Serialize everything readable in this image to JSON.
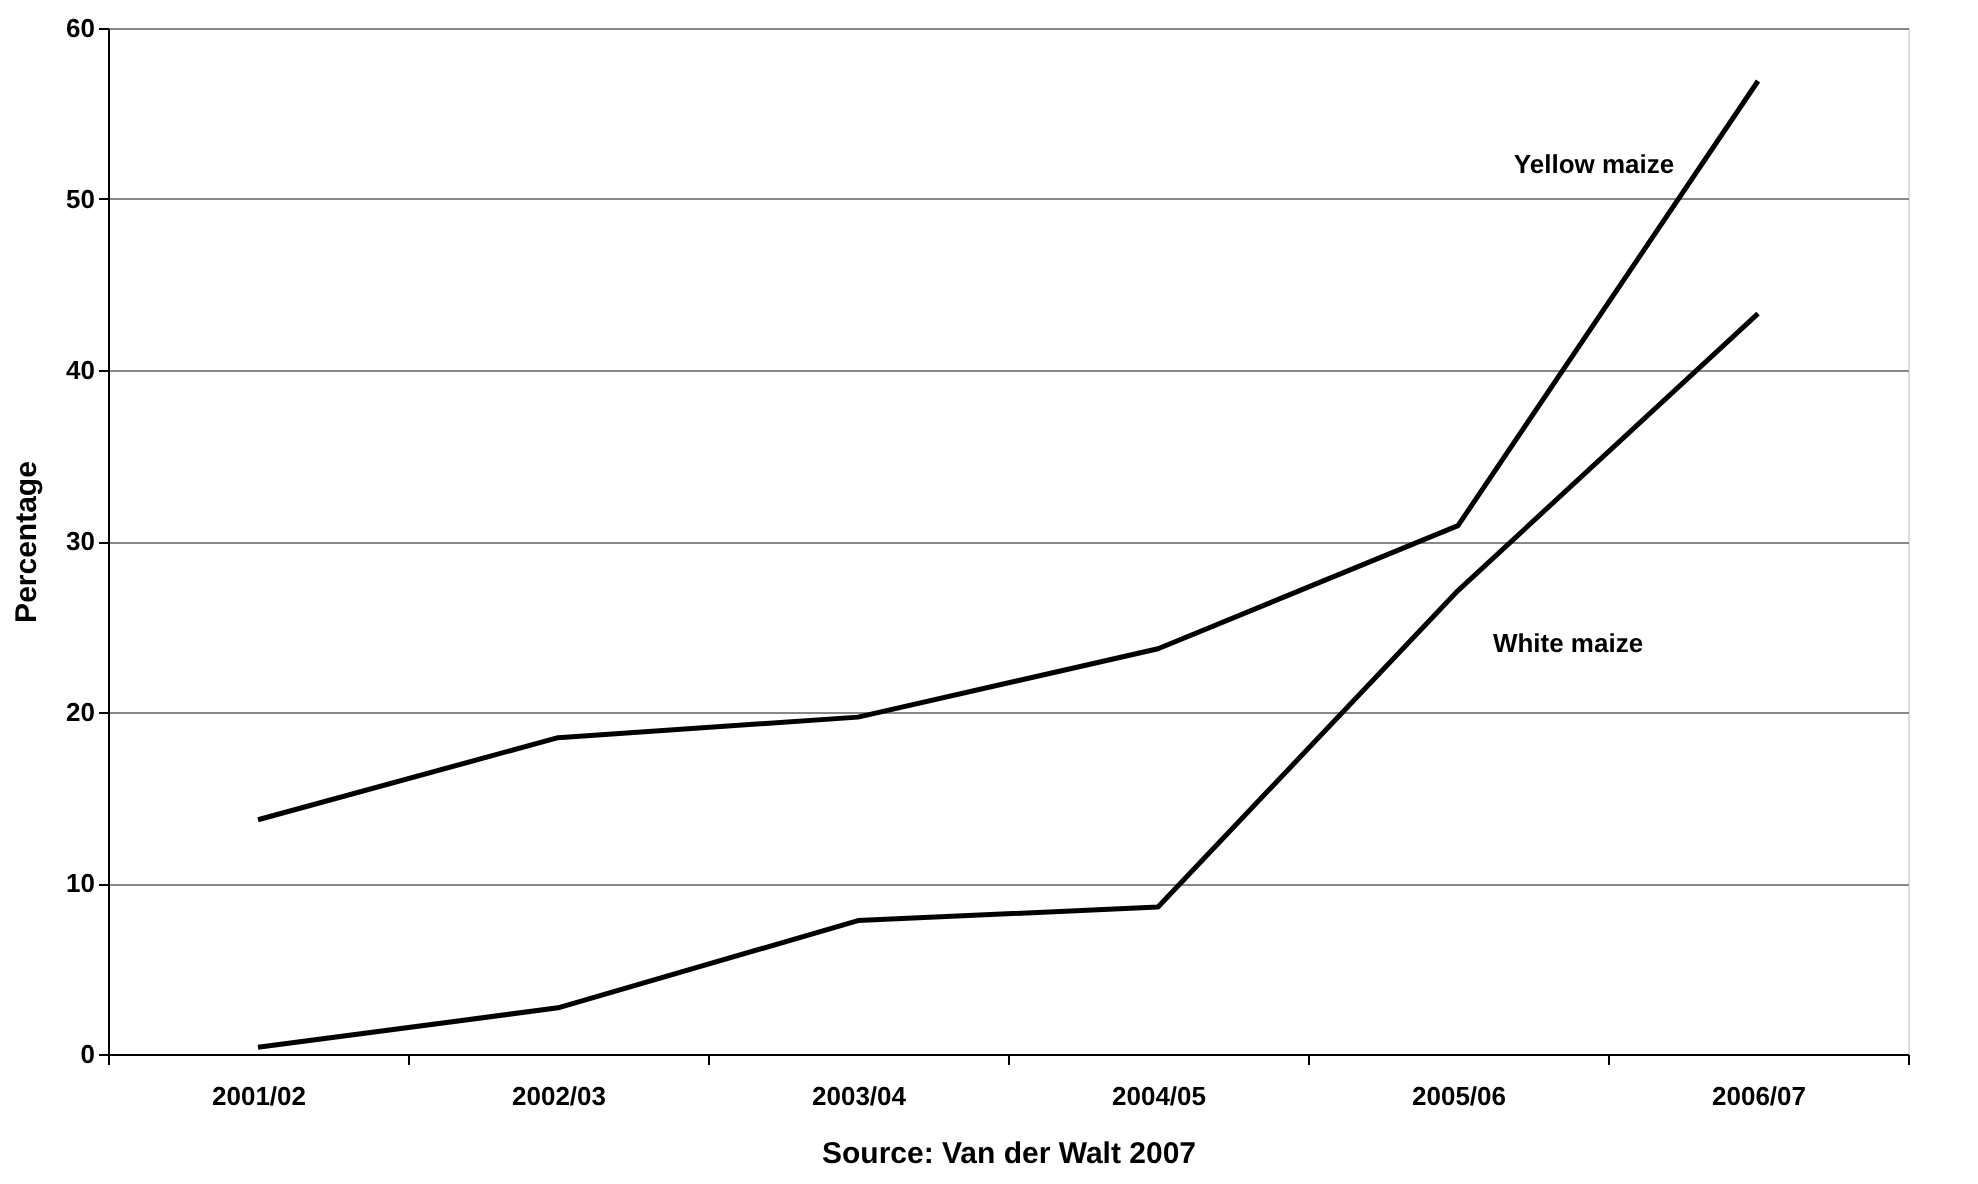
{
  "chart_data": {
    "type": "line",
    "ylabel": "Percentage",
    "annotations": [
      "Source: Van der Walt 2007"
    ],
    "categories": [
      "2001/02",
      "2002/03",
      "2003/04",
      "2004/05",
      "2005/06",
      "2006/07"
    ],
    "ylim": [
      0,
      60
    ],
    "yticks": [
      0,
      10,
      20,
      30,
      40,
      50,
      60
    ],
    "grid": "y",
    "legend": false,
    "marker": "none",
    "line_style": "solid",
    "series": [
      {
        "name": "Yellow maize",
        "color": "#000000",
        "values": [
          13.7,
          18.5,
          19.7,
          23.7,
          30.9,
          56.9
        ]
      },
      {
        "name": "White maize",
        "color": "#000000",
        "values": [
          0.4,
          2.7,
          7.8,
          8.6,
          27.1,
          43.3
        ]
      }
    ]
  }
}
